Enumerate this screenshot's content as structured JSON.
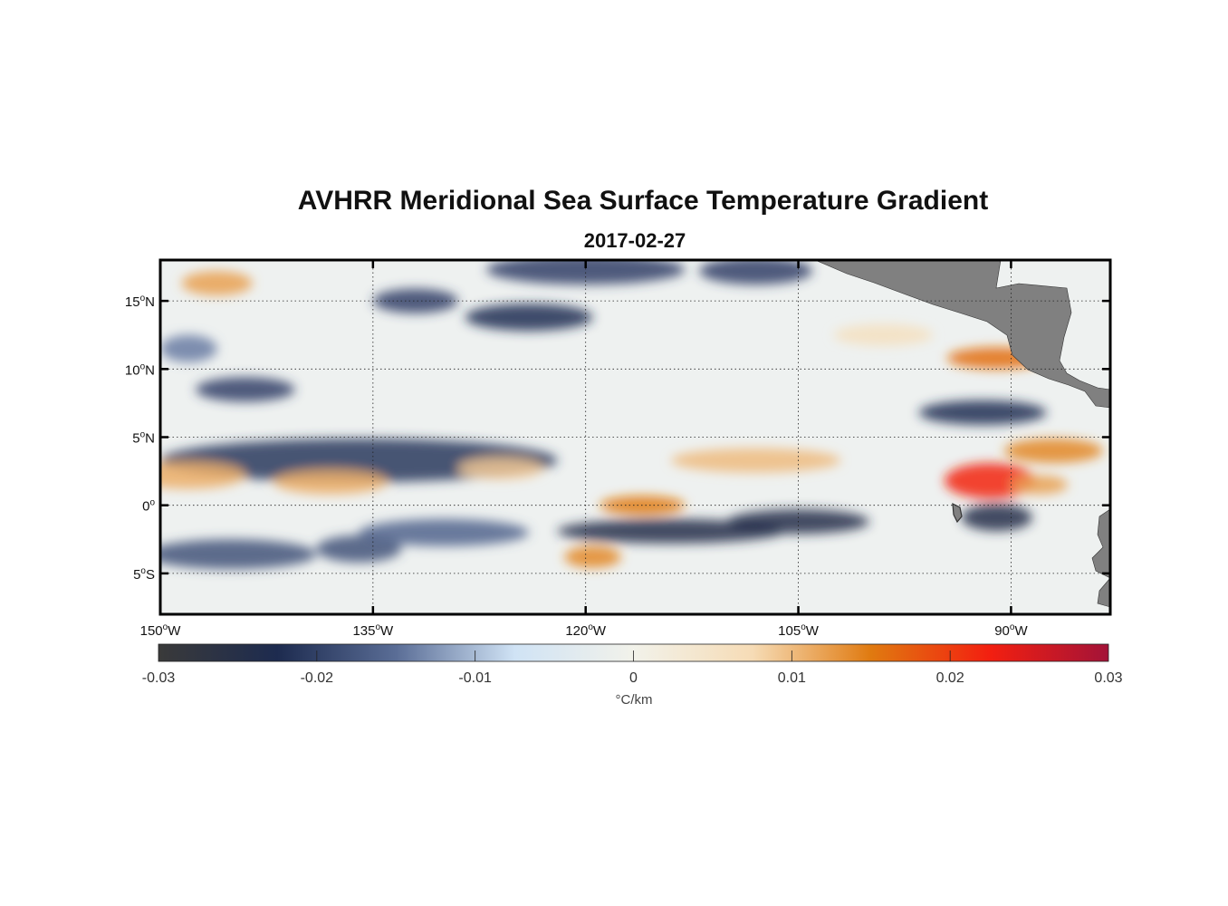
{
  "title": "AVHRR Meridional Sea Surface Temperature Gradient",
  "subtitle": "2017-02-27",
  "map": {
    "lon_range": [
      -150,
      -83
    ],
    "lat_range": [
      -8,
      18
    ],
    "lon_ticks": [
      {
        "value": -150,
        "deg": "150",
        "hem": "W"
      },
      {
        "value": -135,
        "deg": "135",
        "hem": "W"
      },
      {
        "value": -120,
        "deg": "120",
        "hem": "W"
      },
      {
        "value": -105,
        "deg": "105",
        "hem": "W"
      },
      {
        "value": -90,
        "deg": "90",
        "hem": "W"
      }
    ],
    "lat_ticks": [
      {
        "value": 15,
        "deg": "15",
        "hem": "N"
      },
      {
        "value": 10,
        "deg": "10",
        "hem": "N"
      },
      {
        "value": 5,
        "deg": "5",
        "hem": "N"
      },
      {
        "value": 0,
        "deg": "0",
        "hem": ""
      },
      {
        "value": -5,
        "deg": "5",
        "hem": "S"
      }
    ],
    "grid": "dotted",
    "land_color": "#808080",
    "features": [
      {
        "lon": -136,
        "lat": 3.3,
        "dx": 14,
        "dy": 1.6,
        "v": -0.021
      },
      {
        "lon": -148,
        "lat": 2.2,
        "dx": 4,
        "dy": 1.0,
        "v": 0.011
      },
      {
        "lon": -138,
        "lat": 1.7,
        "dx": 4,
        "dy": 0.9,
        "v": 0.011
      },
      {
        "lon": -144,
        "lat": 8.5,
        "dx": 3.5,
        "dy": 0.9,
        "v": -0.02
      },
      {
        "lon": -145,
        "lat": -3.6,
        "dx": 6,
        "dy": 1.1,
        "v": -0.018
      },
      {
        "lon": -136,
        "lat": -3.2,
        "dx": 3,
        "dy": 1.0,
        "v": -0.018
      },
      {
        "lon": -146,
        "lat": 16.3,
        "dx": 2.5,
        "dy": 0.9,
        "v": 0.012
      },
      {
        "lon": -148,
        "lat": 11.5,
        "dx": 2,
        "dy": 1.0,
        "v": -0.014
      },
      {
        "lon": -132,
        "lat": 15.0,
        "dx": 3,
        "dy": 0.9,
        "v": -0.02
      },
      {
        "lon": -124,
        "lat": 13.8,
        "dx": 4.5,
        "dy": 1.0,
        "v": -0.022
      },
      {
        "lon": -120,
        "lat": 17.3,
        "dx": 7,
        "dy": 1.1,
        "v": -0.02
      },
      {
        "lon": -108,
        "lat": 17.2,
        "dx": 4,
        "dy": 1.0,
        "v": -0.02
      },
      {
        "lon": -130,
        "lat": -2.0,
        "dx": 6,
        "dy": 1.0,
        "v": -0.016
      },
      {
        "lon": -114,
        "lat": -1.9,
        "dx": 8,
        "dy": 0.9,
        "v": -0.024
      },
      {
        "lon": -105,
        "lat": -1.2,
        "dx": 5,
        "dy": 0.9,
        "v": -0.024
      },
      {
        "lon": -116,
        "lat": 0.0,
        "dx": 3,
        "dy": 0.7,
        "v": 0.015
      },
      {
        "lon": -119.5,
        "lat": -3.8,
        "dx": 2,
        "dy": 0.8,
        "v": 0.014
      },
      {
        "lon": -108,
        "lat": 3.3,
        "dx": 6,
        "dy": 0.9,
        "v": 0.01
      },
      {
        "lon": -126,
        "lat": 2.7,
        "dx": 3,
        "dy": 0.8,
        "v": 0.009
      },
      {
        "lon": -91.5,
        "lat": 1.8,
        "dx": 3.2,
        "dy": 1.3,
        "v": 0.022
      },
      {
        "lon": -91,
        "lat": -0.9,
        "dx": 2.5,
        "dy": 1.0,
        "v": -0.024
      },
      {
        "lon": -92,
        "lat": 6.8,
        "dx": 4.5,
        "dy": 0.9,
        "v": -0.022
      },
      {
        "lon": -91,
        "lat": 10.8,
        "dx": 3.5,
        "dy": 0.8,
        "v": 0.016
      },
      {
        "lon": -87,
        "lat": 4.0,
        "dx": 3.5,
        "dy": 0.9,
        "v": 0.014
      },
      {
        "lon": -99,
        "lat": 12.5,
        "dx": 3.5,
        "dy": 0.8,
        "v": 0.006
      },
      {
        "lon": -88,
        "lat": 1.5,
        "dx": 2.0,
        "dy": 0.7,
        "v": 0.012
      }
    ]
  },
  "colorbar": {
    "min": -0.03,
    "max": 0.03,
    "tick_labels": [
      "-0.03",
      "-0.02",
      "-0.01",
      "0",
      "0.01",
      "0.02",
      "0.03"
    ],
    "tick_values": [
      -0.03,
      -0.02,
      -0.01,
      0,
      0.01,
      0.02,
      0.03
    ],
    "unit": "°C/km",
    "colors": [
      "#3a3a3a",
      "#1d2b4f",
      "#5a6d96",
      "#d0e3f5",
      "#f2f2ea",
      "#f6dcb6",
      "#e07a10",
      "#f31f10",
      "#a31338"
    ]
  }
}
